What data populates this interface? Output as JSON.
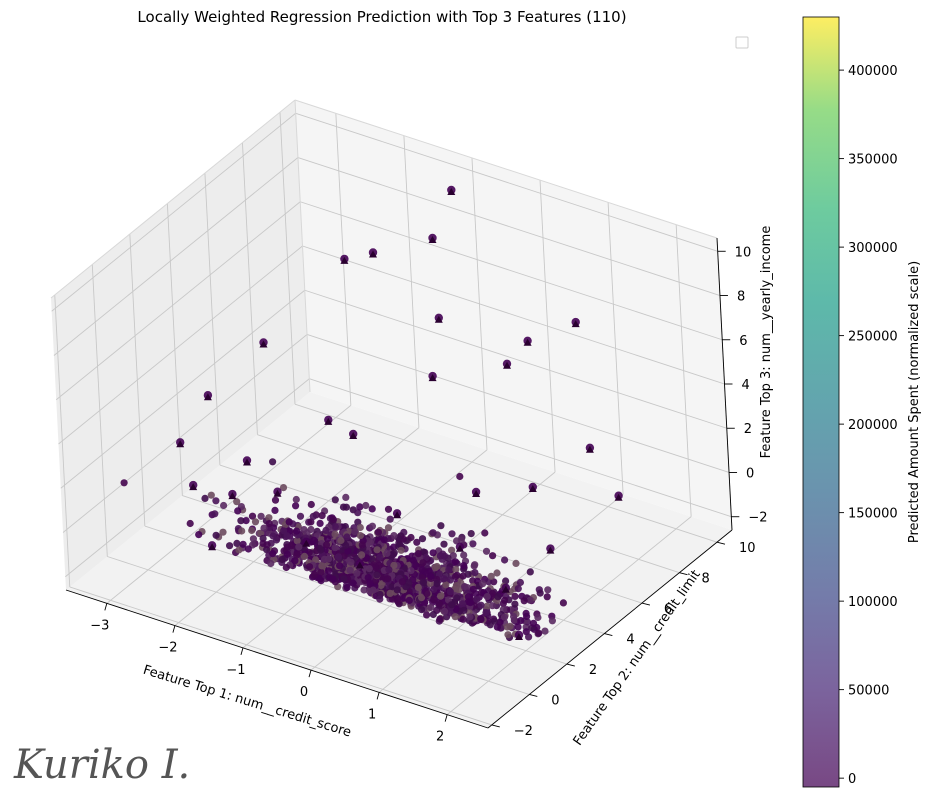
{
  "chart_data": {
    "type": "scatter",
    "title": "Locally Weighted Regression Prediction with Top 3 Features (110)",
    "xlabel": "Feature Top 1: num__credit_score",
    "ylabel": "Feature Top 2: num__credit_limit",
    "zlabel": "Feature Top 3: num__yearly_income",
    "x_ticks": [
      "−3",
      "−2",
      "−1",
      "0",
      "1",
      "2"
    ],
    "y_ticks": [
      "−2",
      "0",
      "2",
      "4",
      "6",
      "8",
      "10"
    ],
    "z_ticks": [
      "−2",
      "0",
      "2",
      "4",
      "6",
      "8",
      "10"
    ],
    "xlim": [
      -3.6,
      2.6
    ],
    "ylim": [
      -2.2,
      10.8
    ],
    "zlim": [
      -2.6,
      10.6
    ],
    "grid": true,
    "legend": "upper-right (empty)",
    "colormap": "viridis",
    "colorbar": {
      "label": "Predicted Amount Spent (normalized scale)",
      "ticks": [
        "0",
        "50000",
        "100000",
        "150000",
        "200000",
        "250000",
        "300000",
        "350000",
        "400000"
      ],
      "tick_values": [
        0,
        50000,
        100000,
        150000,
        200000,
        250000,
        300000,
        350000,
        400000
      ],
      "range": [
        -5000,
        430000
      ]
    },
    "marker_color": "#440154",
    "points": [
      [
        -3.3,
        3.0,
        0.8
      ],
      [
        -3.2,
        4.2,
        2.2
      ],
      [
        -3.0,
        6.5,
        3.2
      ],
      [
        -2.9,
        5.0,
        -1.0
      ],
      [
        -2.7,
        1.5,
        0.5
      ],
      [
        -2.5,
        2.8,
        -0.6
      ],
      [
        -2.2,
        0.6,
        -1.1
      ],
      [
        -2.0,
        3.4,
        -0.4
      ],
      [
        -1.8,
        5.5,
        1.6
      ],
      [
        -1.5,
        7.2,
        8.3
      ],
      [
        -1.3,
        9.6,
        7.5
      ],
      [
        -1.2,
        2.0,
        -0.9
      ],
      [
        -1.0,
        4.0,
        2.8
      ],
      [
        -0.8,
        8.0,
        5.5
      ],
      [
        -0.5,
        6.5,
        4.2
      ],
      [
        -0.3,
        1.6,
        -0.7
      ],
      [
        0.1,
        9.4,
        4.4
      ],
      [
        0.3,
        7.6,
        4.8
      ],
      [
        0.5,
        5.0,
        1.0
      ],
      [
        0.8,
        3.0,
        0.2
      ],
      [
        1.0,
        6.2,
        0.9
      ],
      [
        1.3,
        8.2,
        1.6
      ],
      [
        1.6,
        2.5,
        -0.5
      ],
      [
        1.8,
        4.2,
        0.3
      ],
      [
        2.1,
        6.8,
        1.2
      ],
      [
        2.2,
        1.0,
        -1.0
      ],
      [
        -2.4,
        8.8,
        6.0
      ],
      [
        -1.1,
        10.0,
        9.6
      ],
      [
        0.6,
        10.2,
        5.2
      ],
      [
        -0.2,
        3.3,
        0.5
      ]
    ]
  },
  "signature_text": "Kuriko I."
}
